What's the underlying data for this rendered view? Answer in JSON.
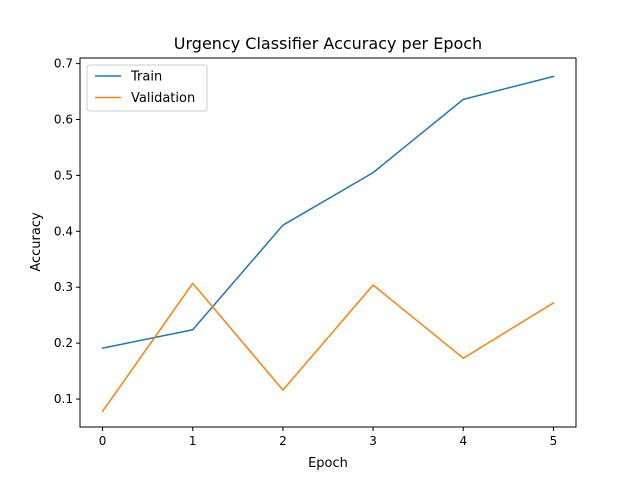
{
  "chart_data": {
    "type": "line",
    "title": "Urgency Classifier Accuracy per Epoch",
    "xlabel": "Epoch",
    "ylabel": "Accuracy",
    "x": [
      0,
      1,
      2,
      3,
      4,
      5
    ],
    "xticks": [
      "0",
      "1",
      "2",
      "3",
      "4",
      "5"
    ],
    "yticks": [
      "0.1",
      "0.2",
      "0.3",
      "0.4",
      "0.5",
      "0.6",
      "0.7"
    ],
    "xlim": [
      -0.25,
      5.25
    ],
    "ylim": [
      0.05,
      0.71
    ],
    "grid": false,
    "legend_position": "top-left",
    "series": [
      {
        "name": "Train",
        "color": "#1f77b4",
        "values": [
          0.191,
          0.224,
          0.411,
          0.505,
          0.636,
          0.677
        ]
      },
      {
        "name": "Validation",
        "color": "#ff7f0e",
        "values": [
          0.078,
          0.307,
          0.116,
          0.304,
          0.173,
          0.272
        ]
      }
    ]
  }
}
